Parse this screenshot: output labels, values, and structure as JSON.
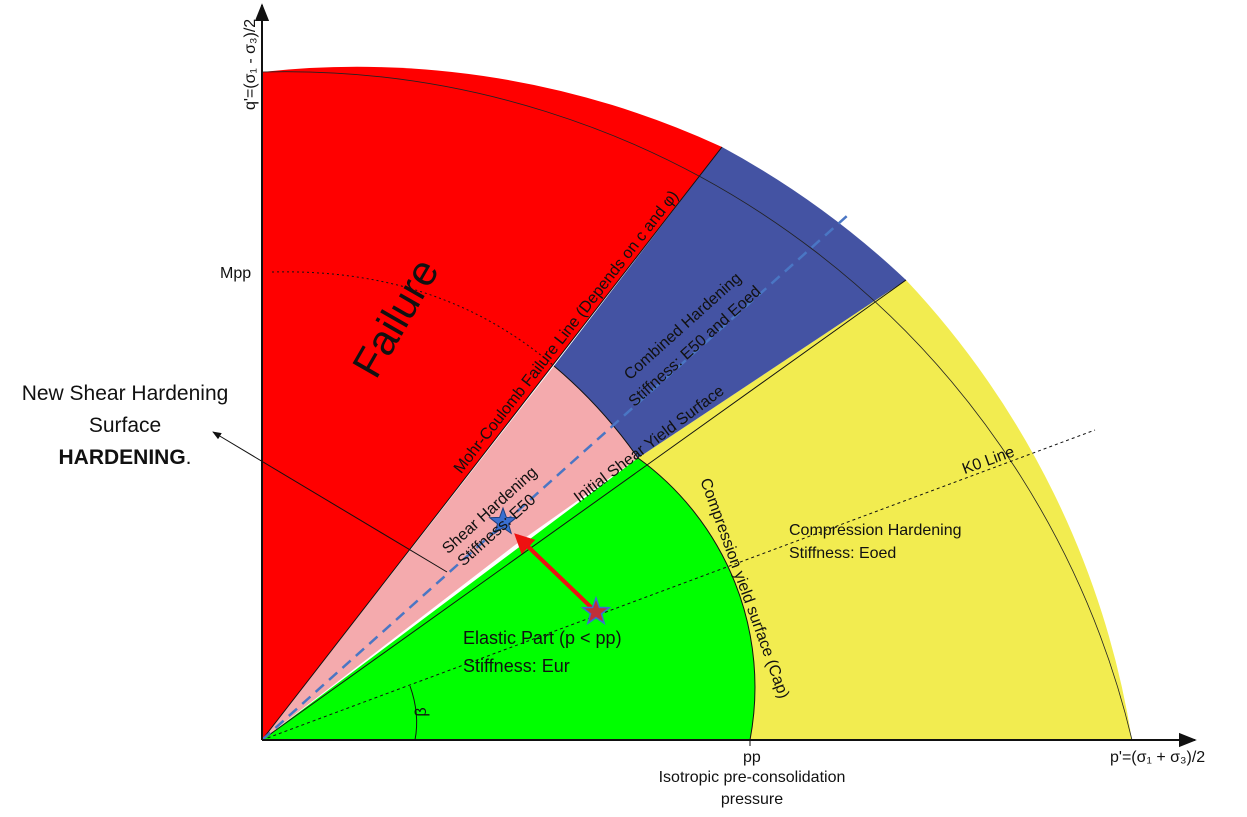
{
  "axes": {
    "y_label": "q'=(σ₁ - σ₃)/2",
    "x_label": "p'=(σ₁ + σ₃)/2",
    "mp_label": "Mpp",
    "pp_label": "pp",
    "pp_caption_line1": "Isotropic pre-consolidation",
    "pp_caption_line2": "pressure",
    "beta_label": "β"
  },
  "regions": {
    "failure": {
      "label": "Failure",
      "color": "#ff0000"
    },
    "combined": {
      "line1": "Combined Hardening",
      "line2": "Stiffness: E50 and Eoed",
      "color": "#4453a3"
    },
    "shear": {
      "line1": "Shear Hardening",
      "line2": "Stiffness: E50",
      "color": "#f4aaad"
    },
    "elastic": {
      "line1": "Elastic Part (p < pp)",
      "line2": "Stiffness: Eur",
      "color": "#00ff00"
    },
    "compression": {
      "line1": "Compression Hardening",
      "line2": "Stiffness: Eoed",
      "color": "#f2ec50"
    }
  },
  "curves": {
    "mohr_coulomb": "Mohr-Coulomb Failure Line (Depends on c and φ)",
    "initial_shear": "Initial Shear Yield Surface",
    "cap": "Compression yield surface (Cap)",
    "k0": "K0 Line"
  },
  "annotation": {
    "line1": "New Shear Hardening",
    "line2": "Surface",
    "line3": "HARDENING",
    "line3_suffix": "."
  },
  "colors": {
    "stress_path_arrow": "#ee1111",
    "dashed_line": "#4a76c4",
    "star_current": "#3a6fd0",
    "star_previous": "#c0303a"
  }
}
